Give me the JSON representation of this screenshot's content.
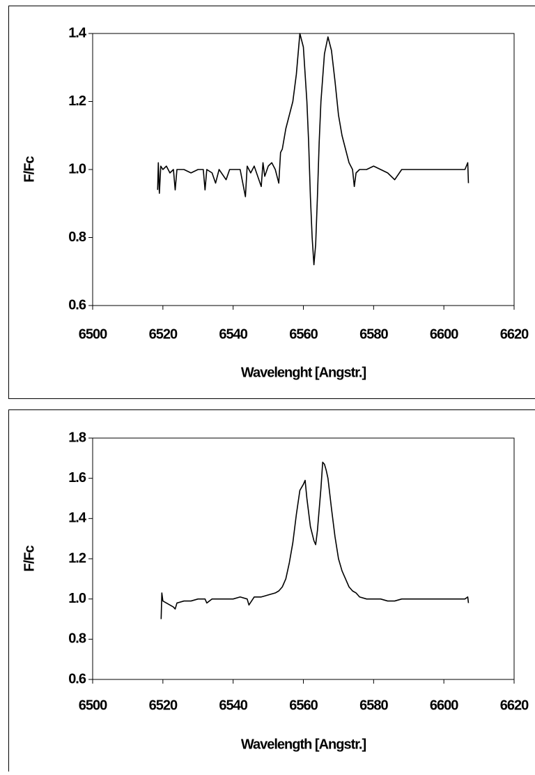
{
  "chart_data": [
    {
      "type": "line",
      "x_label": "Wavelenght [Angstr.]",
      "y_label": "F/Fc",
      "color": "#000000",
      "xlim": [
        6500,
        6620
      ],
      "xticks": [
        6500,
        6520,
        6540,
        6560,
        6580,
        6600,
        6620
      ],
      "ylim": [
        0.6,
        1.4
      ],
      "yticks": [
        0.6,
        0.8,
        {
          "value": 1,
          "label": "1.0"
        },
        1.2,
        1.4
      ],
      "x": [
        6518.5,
        6518.7,
        6519,
        6519.4,
        6520,
        6521,
        6522,
        6523,
        6523.5,
        6524,
        6526,
        6528,
        6530,
        6531.5,
        6532,
        6532.5,
        6534,
        6535,
        6536,
        6538,
        6539,
        6540,
        6542,
        6543.5,
        6544,
        6545,
        6546,
        6547,
        6548,
        6548.5,
        6549,
        6550,
        6551,
        6552,
        6553,
        6553.5,
        6554,
        6555,
        6556,
        6557,
        6558,
        6559,
        6560,
        6561,
        6561.5,
        6562,
        6562.5,
        6563,
        6563.5,
        6564,
        6564.5,
        6565,
        6566,
        6567,
        6568,
        6569,
        6570,
        6571,
        6572,
        6573,
        6574,
        6574.5,
        6575,
        6576,
        6578,
        6580,
        6582,
        6584,
        6586,
        6588,
        6590,
        6592,
        6594,
        6596,
        6598,
        6600,
        6602,
        6604,
        6606,
        6606.8,
        6607
      ],
      "values": [
        0.94,
        1.02,
        0.93,
        1.01,
        1.0,
        1.01,
        0.99,
        1.0,
        0.94,
        1.0,
        1.0,
        0.99,
        1.0,
        1.0,
        0.94,
        1.0,
        0.99,
        0.96,
        1.0,
        0.97,
        1.0,
        1.0,
        1.0,
        0.92,
        1.01,
        0.99,
        1.01,
        0.98,
        0.95,
        1.02,
        0.98,
        1.01,
        1.02,
        1.0,
        0.96,
        1.05,
        1.06,
        1.12,
        1.16,
        1.2,
        1.28,
        1.4,
        1.36,
        1.2,
        1.08,
        0.92,
        0.8,
        0.72,
        0.78,
        0.92,
        1.08,
        1.2,
        1.34,
        1.39,
        1.35,
        1.26,
        1.16,
        1.1,
        1.06,
        1.02,
        1.0,
        0.95,
        0.99,
        1.0,
        1.0,
        1.01,
        1.0,
        0.99,
        0.97,
        1.0,
        1.0,
        1.0,
        1.0,
        1.0,
        1.0,
        1.0,
        1.0,
        1.0,
        1.0,
        1.02,
        0.96
      ]
    },
    {
      "type": "line",
      "x_label": "Wavelength [Angstr.]",
      "y_label": "F/Fc",
      "color": "#000000",
      "xlim": [
        6500,
        6620
      ],
      "xticks": [
        6500,
        6520,
        6540,
        6560,
        6580,
        6600,
        6620
      ],
      "ylim": [
        0.6,
        1.8
      ],
      "yticks": [
        0.6,
        0.8,
        {
          "value": 1,
          "label": "1.0"
        },
        1.2,
        1.4,
        1.6,
        1.8
      ],
      "x": [
        6519.5,
        6519.7,
        6520,
        6521,
        6522,
        6523,
        6523.5,
        6524,
        6526,
        6528,
        6530,
        6532,
        6532.5,
        6534,
        6536,
        6538,
        6540,
        6542,
        6544,
        6544.5,
        6546,
        6548,
        6550,
        6552,
        6553,
        6554,
        6555,
        6556,
        6557,
        6558,
        6559,
        6560,
        6560.5,
        6561,
        6562,
        6563,
        6563.5,
        6564,
        6565,
        6565.5,
        6566,
        6566.5,
        6567,
        6568,
        6569,
        6570,
        6571,
        6572,
        6573,
        6574,
        6575,
        6576,
        6578,
        6580,
        6582,
        6584,
        6586,
        6588,
        6590,
        6594,
        6598,
        6602,
        6606,
        6606.8,
        6607
      ],
      "values": [
        0.9,
        1.03,
        0.99,
        0.98,
        0.97,
        0.96,
        0.95,
        0.98,
        0.99,
        0.99,
        1.0,
        1.0,
        0.98,
        1.0,
        1.0,
        1.0,
        1.0,
        1.01,
        1.0,
        0.97,
        1.01,
        1.01,
        1.02,
        1.03,
        1.04,
        1.06,
        1.1,
        1.18,
        1.28,
        1.42,
        1.54,
        1.57,
        1.59,
        1.5,
        1.36,
        1.29,
        1.27,
        1.34,
        1.55,
        1.68,
        1.67,
        1.64,
        1.6,
        1.45,
        1.31,
        1.2,
        1.14,
        1.1,
        1.06,
        1.04,
        1.03,
        1.01,
        1.0,
        1.0,
        1.0,
        0.99,
        0.99,
        1.0,
        1.0,
        1.0,
        1.0,
        1.0,
        1.0,
        1.01,
        0.98
      ]
    }
  ]
}
